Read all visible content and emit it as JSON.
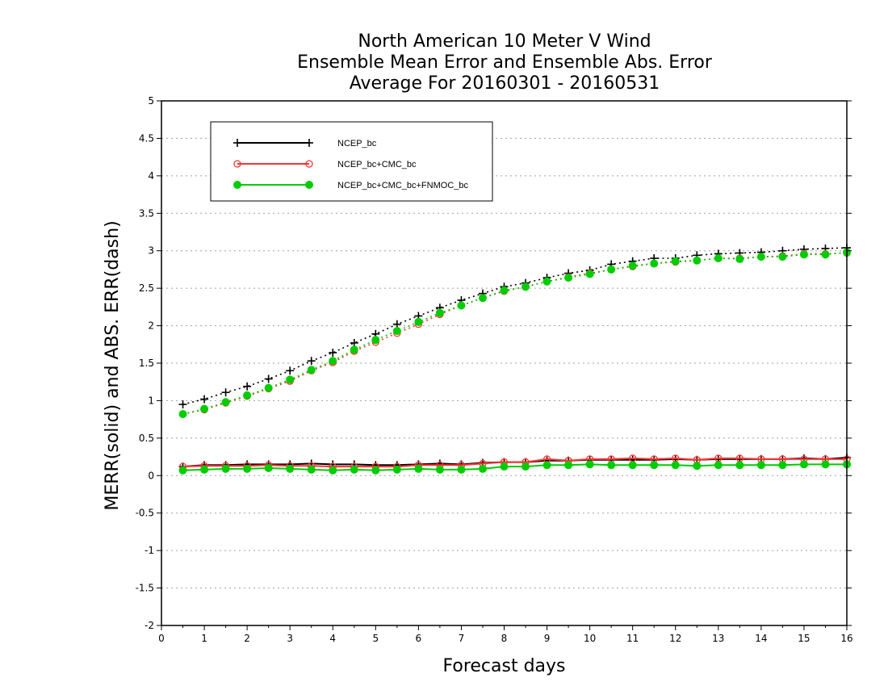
{
  "chart_data": {
    "type": "line",
    "title_lines": [
      "North American 10 Meter V Wind",
      "Ensemble Mean Error and Ensemble Abs. Error",
      "Average For 20160301 - 20160531"
    ],
    "xlabel": "Forecast days",
    "ylabel": "MERR(solid) and ABS. ERR(dash)",
    "xlim": [
      0,
      16
    ],
    "ylim": [
      -2,
      5
    ],
    "x_ticks": [
      0,
      1,
      2,
      3,
      4,
      5,
      6,
      7,
      8,
      9,
      10,
      11,
      12,
      13,
      14,
      15,
      16
    ],
    "y_ticks": [
      -2,
      -1.5,
      -1,
      -0.5,
      0,
      0.5,
      1,
      1.5,
      2,
      2.5,
      3,
      3.5,
      4,
      4.5,
      5
    ],
    "grid": "horizontal-dotted",
    "legend_position": "top-left",
    "x": [
      0.5,
      1,
      1.5,
      2,
      2.5,
      3,
      3.5,
      4,
      4.5,
      5,
      5.5,
      6,
      6.5,
      7,
      7.5,
      8,
      8.5,
      9,
      9.5,
      10,
      10.5,
      11,
      11.5,
      12,
      12.5,
      13,
      13.5,
      14,
      14.5,
      15,
      15.5,
      16
    ],
    "series": [
      {
        "name": "NCEP_bc",
        "color": "#000000",
        "marker": "plus",
        "merr": [
          0.12,
          0.14,
          0.14,
          0.15,
          0.15,
          0.15,
          0.16,
          0.15,
          0.15,
          0.14,
          0.14,
          0.15,
          0.16,
          0.15,
          0.17,
          0.18,
          0.18,
          0.2,
          0.2,
          0.21,
          0.21,
          0.21,
          0.21,
          0.22,
          0.21,
          0.22,
          0.22,
          0.22,
          0.22,
          0.23,
          0.22,
          0.24
        ],
        "abs_err": [
          0.95,
          1.02,
          1.11,
          1.19,
          1.29,
          1.4,
          1.53,
          1.64,
          1.77,
          1.89,
          2.02,
          2.13,
          2.24,
          2.34,
          2.43,
          2.52,
          2.57,
          2.64,
          2.7,
          2.74,
          2.82,
          2.86,
          2.9,
          2.9,
          2.94,
          2.96,
          2.97,
          2.98,
          3.0,
          3.02,
          3.03,
          3.04
        ]
      },
      {
        "name": "NCEP_bc+CMC_bc",
        "color": "#ff3333",
        "marker": "open-circle",
        "merr": [
          0.12,
          0.13,
          0.13,
          0.13,
          0.14,
          0.13,
          0.13,
          0.12,
          0.12,
          0.12,
          0.12,
          0.14,
          0.14,
          0.14,
          0.16,
          0.18,
          0.18,
          0.22,
          0.2,
          0.22,
          0.22,
          0.23,
          0.22,
          0.23,
          0.21,
          0.23,
          0.23,
          0.22,
          0.22,
          0.22,
          0.22,
          0.22
        ],
        "abs_err": [
          0.82,
          0.88,
          0.97,
          1.06,
          1.16,
          1.26,
          1.4,
          1.51,
          1.66,
          1.78,
          1.9,
          2.02,
          2.15,
          2.27,
          2.37,
          2.46,
          2.52,
          2.59,
          2.65,
          2.7,
          2.75,
          2.79,
          2.83,
          2.85,
          2.87,
          2.9,
          2.9,
          2.92,
          2.93,
          2.96,
          2.96,
          2.97
        ]
      },
      {
        "name": "NCEP_bc+CMC_bc+FNMOC_bc",
        "color": "#00cc00",
        "marker": "filled-circle",
        "merr": [
          0.07,
          0.08,
          0.09,
          0.09,
          0.1,
          0.09,
          0.08,
          0.07,
          0.08,
          0.07,
          0.08,
          0.09,
          0.08,
          0.08,
          0.09,
          0.12,
          0.12,
          0.14,
          0.14,
          0.15,
          0.14,
          0.14,
          0.14,
          0.14,
          0.13,
          0.14,
          0.14,
          0.14,
          0.14,
          0.15,
          0.15,
          0.15
        ],
        "abs_err": [
          0.82,
          0.89,
          0.98,
          1.07,
          1.17,
          1.28,
          1.41,
          1.53,
          1.68,
          1.81,
          1.93,
          2.05,
          2.17,
          2.27,
          2.37,
          2.47,
          2.52,
          2.59,
          2.64,
          2.69,
          2.75,
          2.8,
          2.83,
          2.86,
          2.87,
          2.9,
          2.89,
          2.92,
          2.92,
          2.95,
          2.95,
          2.98
        ]
      }
    ]
  }
}
